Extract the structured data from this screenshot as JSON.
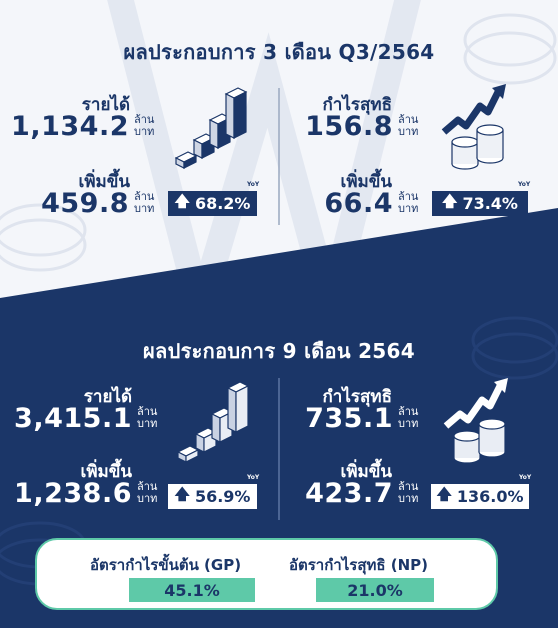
{
  "colors": {
    "navy": "#1b3668",
    "mint": "#5ec9a8",
    "white": "#ffffff"
  },
  "q3": {
    "title": "ผลประกอบการ 3 เดือน Q3/2564",
    "revenue": {
      "label": "รายได้",
      "value": "1,134.2",
      "unit_top": "ล้าน",
      "unit_bottom": "บาท"
    },
    "revenue_growth": {
      "label": "เพิ่มขึ้น",
      "value": "459.8",
      "unit_top": "ล้าน",
      "unit_bottom": "บาท",
      "yoy_label": "YoY",
      "percent": "68.2%"
    },
    "net_profit": {
      "label": "กำไรสุทธิ",
      "value": "156.8",
      "unit_top": "ล้าน",
      "unit_bottom": "บาท"
    },
    "profit_growth": {
      "label": "เพิ่มขึ้น",
      "value": "66.4",
      "unit_top": "ล้าน",
      "unit_bottom": "บาท",
      "yoy_label": "YoY",
      "percent": "73.4%"
    }
  },
  "nine_month": {
    "title": "ผลประกอบการ 9 เดือน 2564",
    "revenue": {
      "label": "รายได้",
      "value": "3,415.1",
      "unit_top": "ล้าน",
      "unit_bottom": "บาท"
    },
    "revenue_growth": {
      "label": "เพิ่มขึ้น",
      "value": "1,238.6",
      "unit_top": "ล้าน",
      "unit_bottom": "บาท",
      "yoy_label": "YoY",
      "percent": "56.9%"
    },
    "net_profit": {
      "label": "กำไรสุทธิ",
      "value": "735.1",
      "unit_top": "ล้าน",
      "unit_bottom": "บาท"
    },
    "profit_growth": {
      "label": "เพิ่มขึ้น",
      "value": "423.7",
      "unit_top": "ล้าน",
      "unit_bottom": "บาท",
      "yoy_label": "YoY",
      "percent": "136.0%"
    }
  },
  "ratios": {
    "gp": {
      "label": "อัตรากำไรขั้นต้น (GP)",
      "value": "45.1%"
    },
    "np": {
      "label": "อัตรากำไรสุทธิ (NP)",
      "value": "21.0%"
    }
  },
  "icons": [
    "bar-growth-icon",
    "coin-stack-arrow-icon",
    "up-arrow-icon"
  ]
}
